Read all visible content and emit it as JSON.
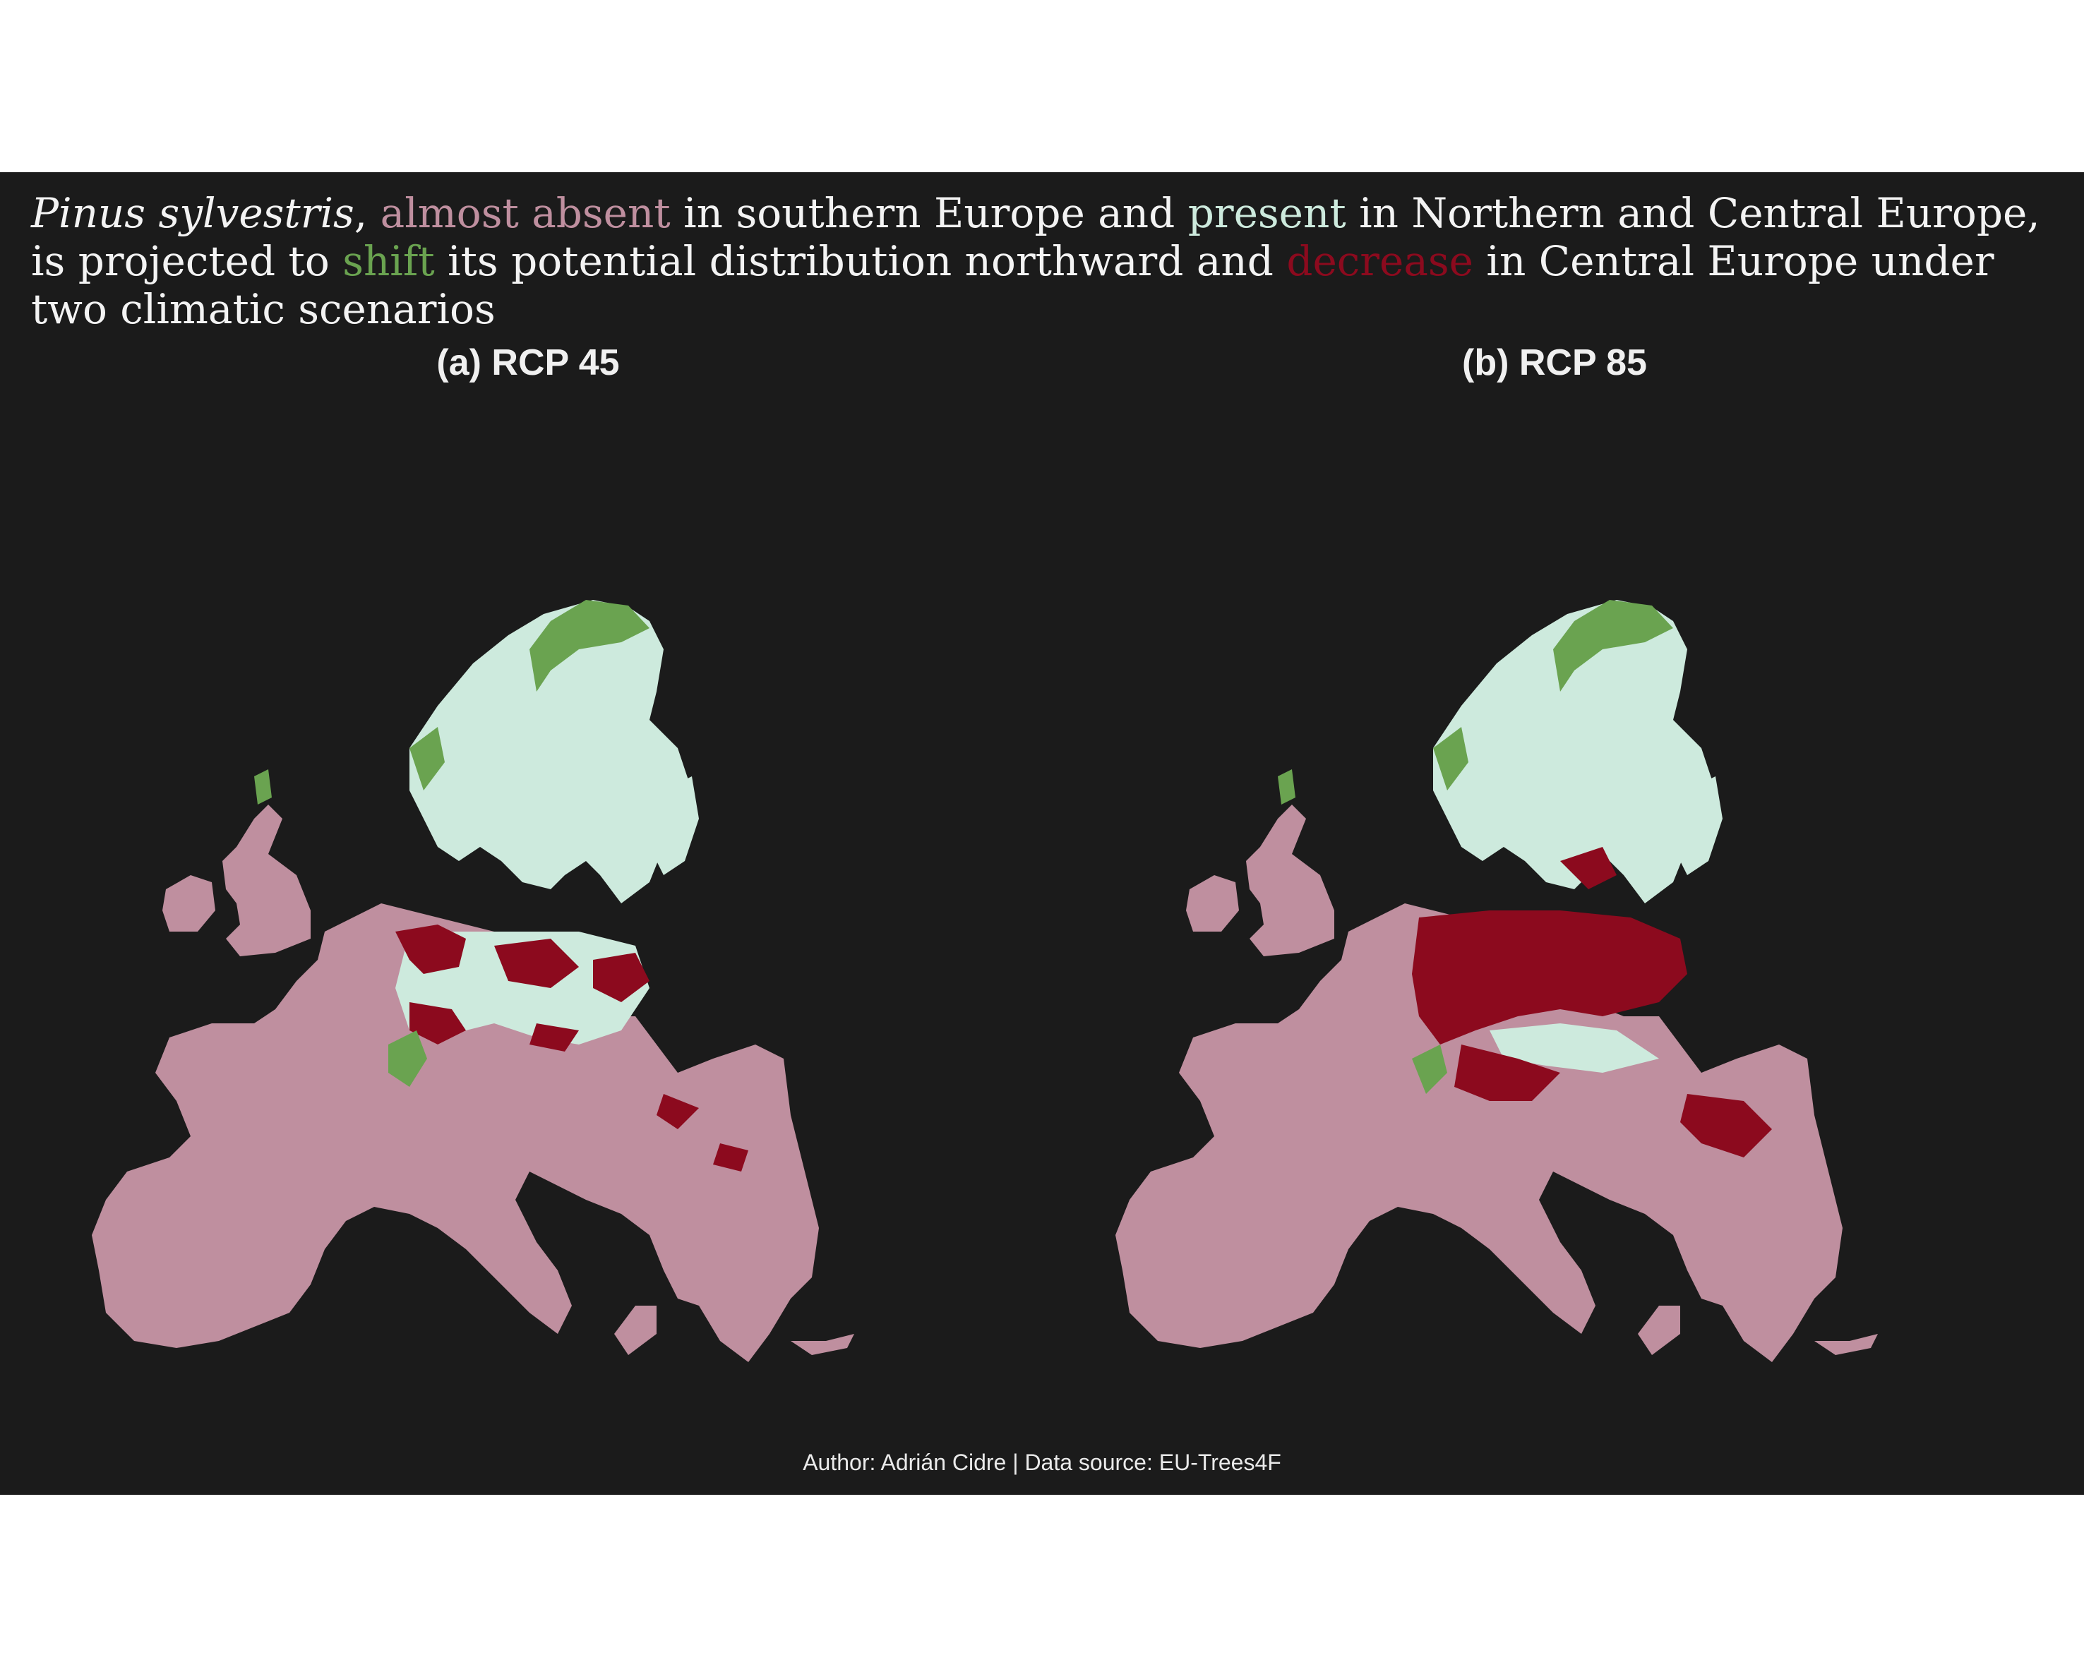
{
  "title": {
    "species": "Pinus sylvestris",
    "t1": ", ",
    "absent": "almost absent",
    "t2": " in southern Europe and ",
    "present": "present",
    "t3": " in Northern and Central Europe, is projected to ",
    "shift": "shift",
    "t4": " its potential distribution northward and ",
    "decrease": "decrease",
    "t5": " in Central Europe under two climatic scenarios"
  },
  "panels": [
    {
      "label": "(a) RCP 45"
    },
    {
      "label": "(b) RCP 85"
    }
  ],
  "caption": "Author: Adrián Cidre | Data source: EU-Trees4F",
  "colors": {
    "background": "#1b1b1b",
    "absent": "#bf8f9f",
    "present": "#cdeadd",
    "shift": "#6aa350",
    "decrease": "#8c0a1e"
  }
}
